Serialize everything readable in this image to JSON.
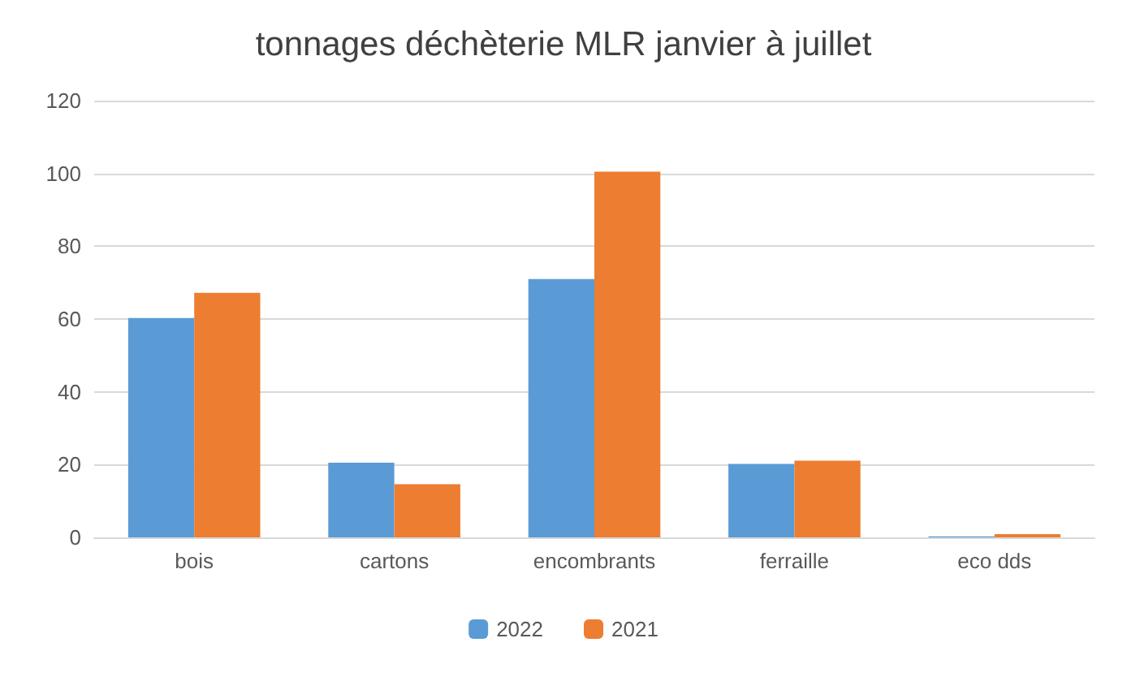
{
  "chart_data": {
    "type": "bar",
    "title": "tonnages déchèterie MLR janvier à juillet",
    "categories": [
      "bois",
      "cartons",
      "encombrants",
      "ferraille",
      "eco dds"
    ],
    "series": [
      {
        "name": "2022",
        "color": "#5b9bd5",
        "values": [
          60.3,
          20.5,
          71,
          20.2,
          0.3
        ]
      },
      {
        "name": "2021",
        "color": "#ed7d31",
        "values": [
          67.2,
          14.6,
          100.5,
          21.1,
          0.9
        ]
      }
    ],
    "ylim": [
      0,
      120
    ],
    "yticks": [
      0,
      20,
      40,
      60,
      80,
      100,
      120
    ],
    "grid": "y",
    "legend": "bottom"
  }
}
